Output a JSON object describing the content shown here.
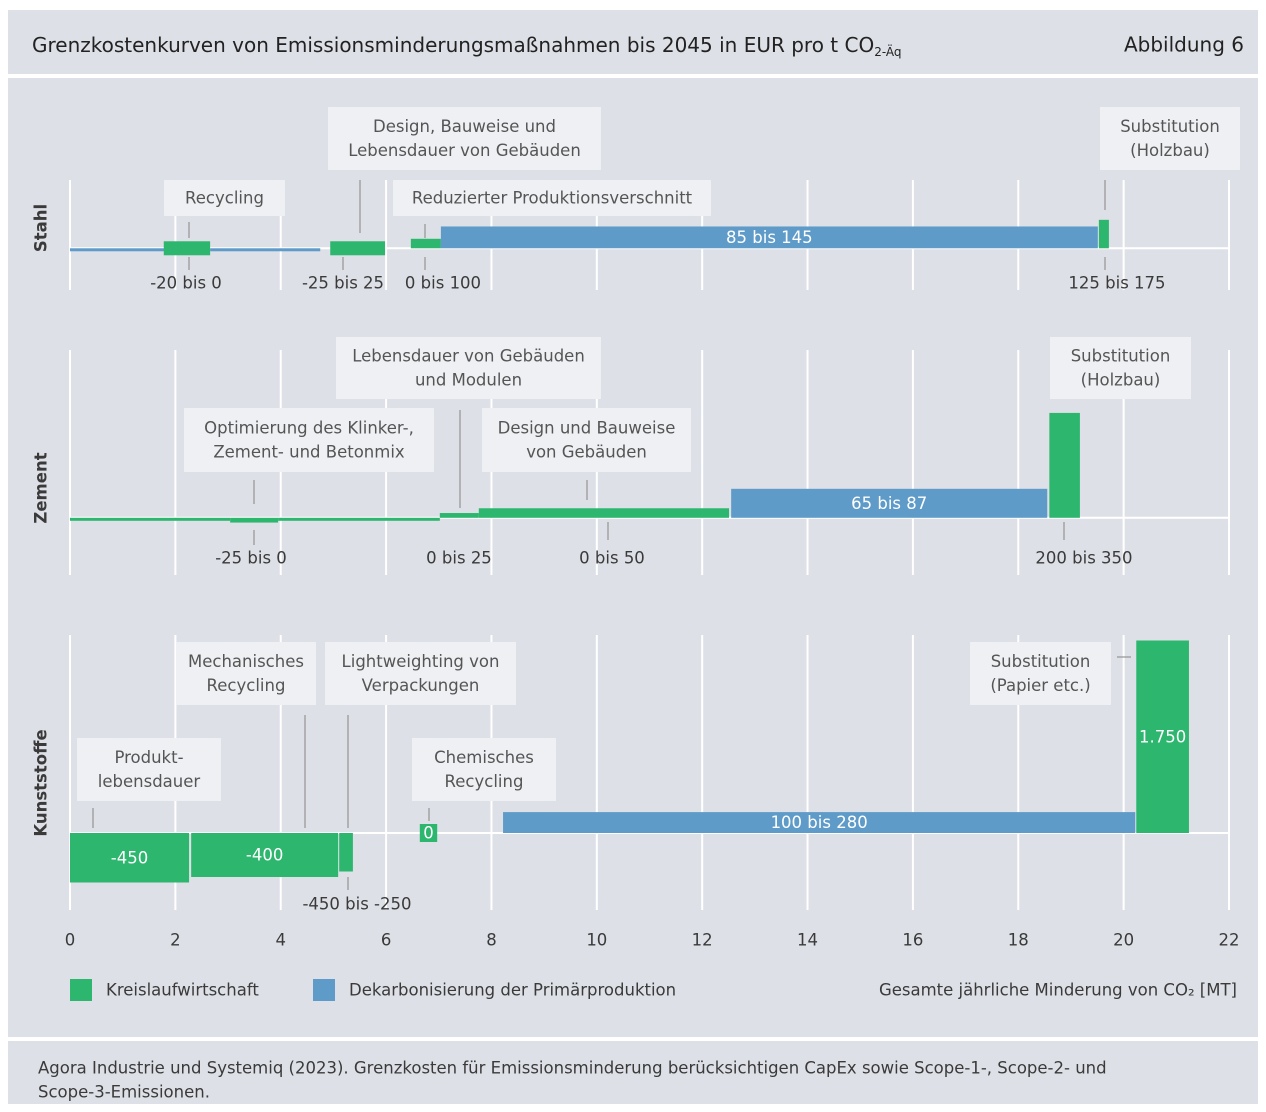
{
  "chart_data": {
    "type": "marginal-cost-curve",
    "title": "Grenzkostenkurven von Emissionsminderungsmaßnahmen bis 2045 in EUR pro t CO",
    "title_subscript": "2-Äq",
    "figure_label": "Abbildung 6",
    "xlabel": "Gesamte jährliche Minderung von CO₂ [MT]",
    "xlim": [
      0,
      22
    ],
    "xticks": [
      0,
      2,
      4,
      6,
      8,
      10,
      12,
      14,
      16,
      18,
      20,
      22
    ],
    "grid": true,
    "series": [
      {
        "name": "Kreislaufwirtschaft",
        "color": "#2db66e"
      },
      {
        "name": "Dekarbonisierung der Primärproduktion",
        "color": "#5f9bc8"
      }
    ],
    "panels": [
      {
        "name": "Stahl",
        "ylim": [
          -220,
          360
        ],
        "bars": [
          {
            "x": [
              0,
              1.8
            ],
            "value": 0,
            "series": 1
          },
          {
            "x": [
              1.78,
              2.66
            ],
            "value": -10,
            "series": 0,
            "label": "-20 bis 0",
            "measure": [
              "Recycling"
            ]
          },
          {
            "x": [
              2.66,
              4.75
            ],
            "value": 0,
            "series": 1
          },
          {
            "x": [
              4.94,
              5.98
            ],
            "value": 0,
            "series": 0,
            "label": "-25 bis 25",
            "measure": [
              "Design, Bauweise und",
              "Lebensdauer von Gebäuden"
            ]
          },
          {
            "x": [
              6.47,
              7.04
            ],
            "value": 50,
            "series": 0,
            "label": "0 bis 100",
            "measure": [
              "Reduzierter Produktionsverschnitt"
            ]
          },
          {
            "x": [
              7.04,
              19.51
            ],
            "value": 115,
            "series": 1,
            "label": "85 bis 145"
          },
          {
            "x": [
              19.53,
              19.72
            ],
            "value": 150,
            "series": 0,
            "label": "125 bis 175",
            "measure": [
              "Substitution",
              "(Holzbau)"
            ]
          }
        ]
      },
      {
        "name": "Zement",
        "ylim": [
          -150,
          440
        ],
        "bars": [
          {
            "x": [
              0,
              3.04
            ],
            "value": 0,
            "series": 0
          },
          {
            "x": [
              3.04,
              3.95
            ],
            "value": -12.5,
            "series": 0,
            "label": "-25 bis 0",
            "measure": [
              "Optimierung des Klinker-,",
              "Zement- und Betonmix"
            ]
          },
          {
            "x": [
              3.95,
              7.02
            ],
            "value": 0,
            "series": 0
          },
          {
            "x": [
              7.02,
              7.76
            ],
            "value": 12.5,
            "series": 0,
            "label": "0 bis 25",
            "measure": [
              "Lebensdauer von Gebäuden",
              "und Modulen"
            ]
          },
          {
            "x": [
              7.76,
              12.51
            ],
            "value": 25,
            "series": 0,
            "label": "0 bis 50",
            "measure": [
              "Design und Bauweise",
              "von Gebäuden"
            ]
          },
          {
            "x": [
              12.55,
              18.55
            ],
            "value": 76,
            "series": 1,
            "label": "65 bis 87"
          },
          {
            "x": [
              18.59,
              19.17
            ],
            "value": 275,
            "series": 0,
            "label": "200 bis 350",
            "measure": [
              "Substitution",
              "(Holzbau)"
            ]
          }
        ]
      },
      {
        "name": "Kunststoffe",
        "ylim": [
          -700,
          1800
        ],
        "bars": [
          {
            "x": [
              0,
              2.26
            ],
            "value": -450,
            "series": 0,
            "label": "-450",
            "measure": [
              "Produkt-",
              "lebensdauer"
            ]
          },
          {
            "x": [
              2.3,
              5.09
            ],
            "value": -400,
            "series": 0,
            "label": "-400",
            "measure": [
              "Mechanisches",
              "Recycling"
            ]
          },
          {
            "x": [
              5.11,
              5.37
            ],
            "value": -350,
            "series": 0,
            "label": "-450 bis -250",
            "measure": [
              "Lightweighting von",
              "Verpackungen"
            ]
          },
          {
            "x": [
              6.64,
              6.97
            ],
            "value": 0,
            "series": 0,
            "label": "0",
            "measure": [
              "Chemisches",
              "Recycling"
            ]
          },
          {
            "x": [
              8.22,
              20.22
            ],
            "value": 190,
            "series": 1,
            "label": "100 bis 280"
          },
          {
            "x": [
              20.24,
              21.24
            ],
            "value": 1750,
            "series": 0,
            "label": "1.750",
            "measure": [
              "Substitution",
              "(Papier etc.)"
            ]
          }
        ]
      }
    ],
    "source": [
      "Agora Industrie und Systemiq (2023). Grenzkosten für Emissionsminderung berücksichtigen CapEx sowie Scope-1-, Scope-2- und",
      "Scope-3-Emissionen."
    ]
  }
}
